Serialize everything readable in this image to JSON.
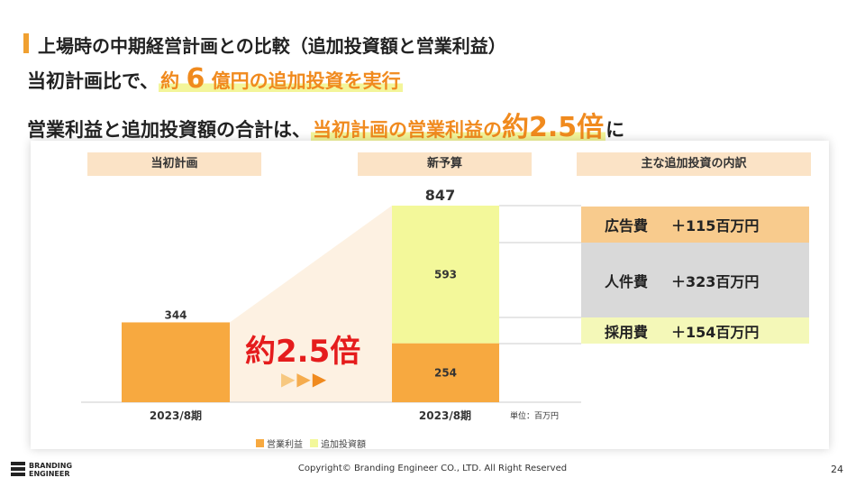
{
  "title": "上場時の中期経営計画との比較（追加投資額と営業利益）",
  "headline1": {
    "prefix": "当初計画比で、",
    "hl_a": "約",
    "hl_num": "6",
    "hl_b": "億円の追加投資を実行"
  },
  "headline2": {
    "prefix": "営業利益と追加投資額の合計は、",
    "hl_a": "当初計画の営業利益の",
    "hl_big": "約2.5倍",
    "suffix": "に"
  },
  "section_headers": {
    "initial": "当初計画",
    "new_budget": "新予算",
    "breakdown": "主な追加投資の内訳"
  },
  "chart_data": {
    "type": "bar",
    "categories": [
      "2023/8期",
      "2023/8期"
    ],
    "series": [
      {
        "name": "営業利益",
        "values": [
          344,
          254
        ]
      },
      {
        "name": "追加投資額",
        "values": [
          0,
          593
        ]
      }
    ],
    "totals": [
      "344",
      "847"
    ],
    "segment_labels": [
      "344",
      "254",
      "593"
    ],
    "unit": "単位：百万円",
    "colors": {
      "operating_profit": "#f7a940",
      "additional_investment": "#f3f89a"
    },
    "ylim": [
      0,
      847
    ]
  },
  "multiplier": {
    "label": "約2.5倍",
    "arrows": [
      "▶",
      "▶",
      "▶"
    ]
  },
  "breakdown": [
    {
      "label": "広告費",
      "value": "＋115百万円",
      "color": "#f8cb8d"
    },
    {
      "label": "人件費",
      "value": "＋323百万円",
      "color": "#d9d9d9"
    },
    {
      "label": "採用費",
      "value": "＋154百万円",
      "color": "#f4f8b8"
    }
  ],
  "footer": "Copyright© Branding Engineer CO., LTD. All Right Reserved",
  "page_number": "24",
  "logo": {
    "line1": "BRANDING",
    "line2": "ENGINEER"
  }
}
